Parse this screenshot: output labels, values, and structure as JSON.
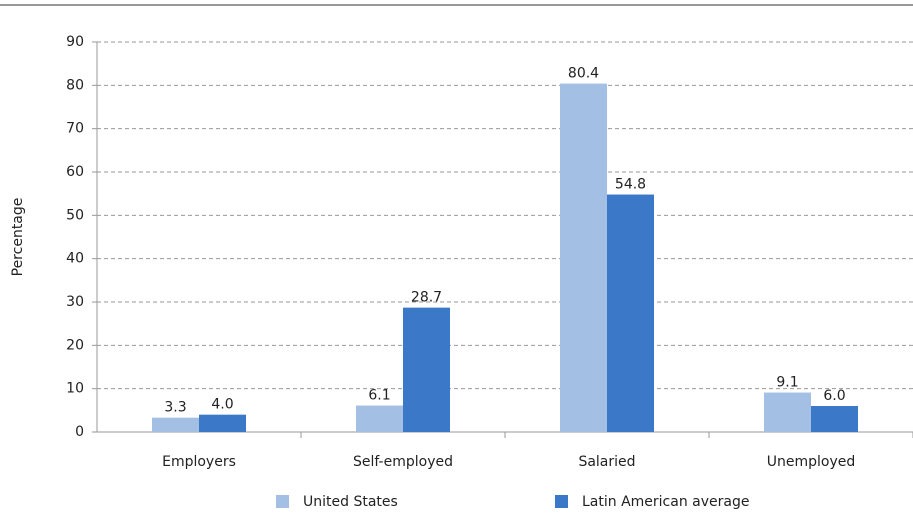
{
  "chart_data": {
    "type": "bar",
    "y_label": "Percentage",
    "categories": [
      "Employers",
      "Self-employed",
      "Salaried",
      "Unemployed"
    ],
    "series": [
      {
        "name": "United States",
        "color": "#a3bfe3",
        "values": [
          3.3,
          6.1,
          80.4,
          9.1
        ],
        "value_labels": [
          "3.3",
          "6.1",
          "80.4",
          "9.1"
        ]
      },
      {
        "name": "Latin American average",
        "color": "#3c78c8",
        "values": [
          4,
          28.7,
          54.8,
          6
        ],
        "value_labels": [
          "4.0",
          "28.7",
          "54.8",
          "6.0"
        ]
      }
    ],
    "ylim": [
      0,
      90
    ],
    "yticks": [
      0,
      10,
      20,
      30,
      40,
      50,
      60,
      70,
      80,
      90
    ],
    "grid": true,
    "legend": "bottom"
  }
}
